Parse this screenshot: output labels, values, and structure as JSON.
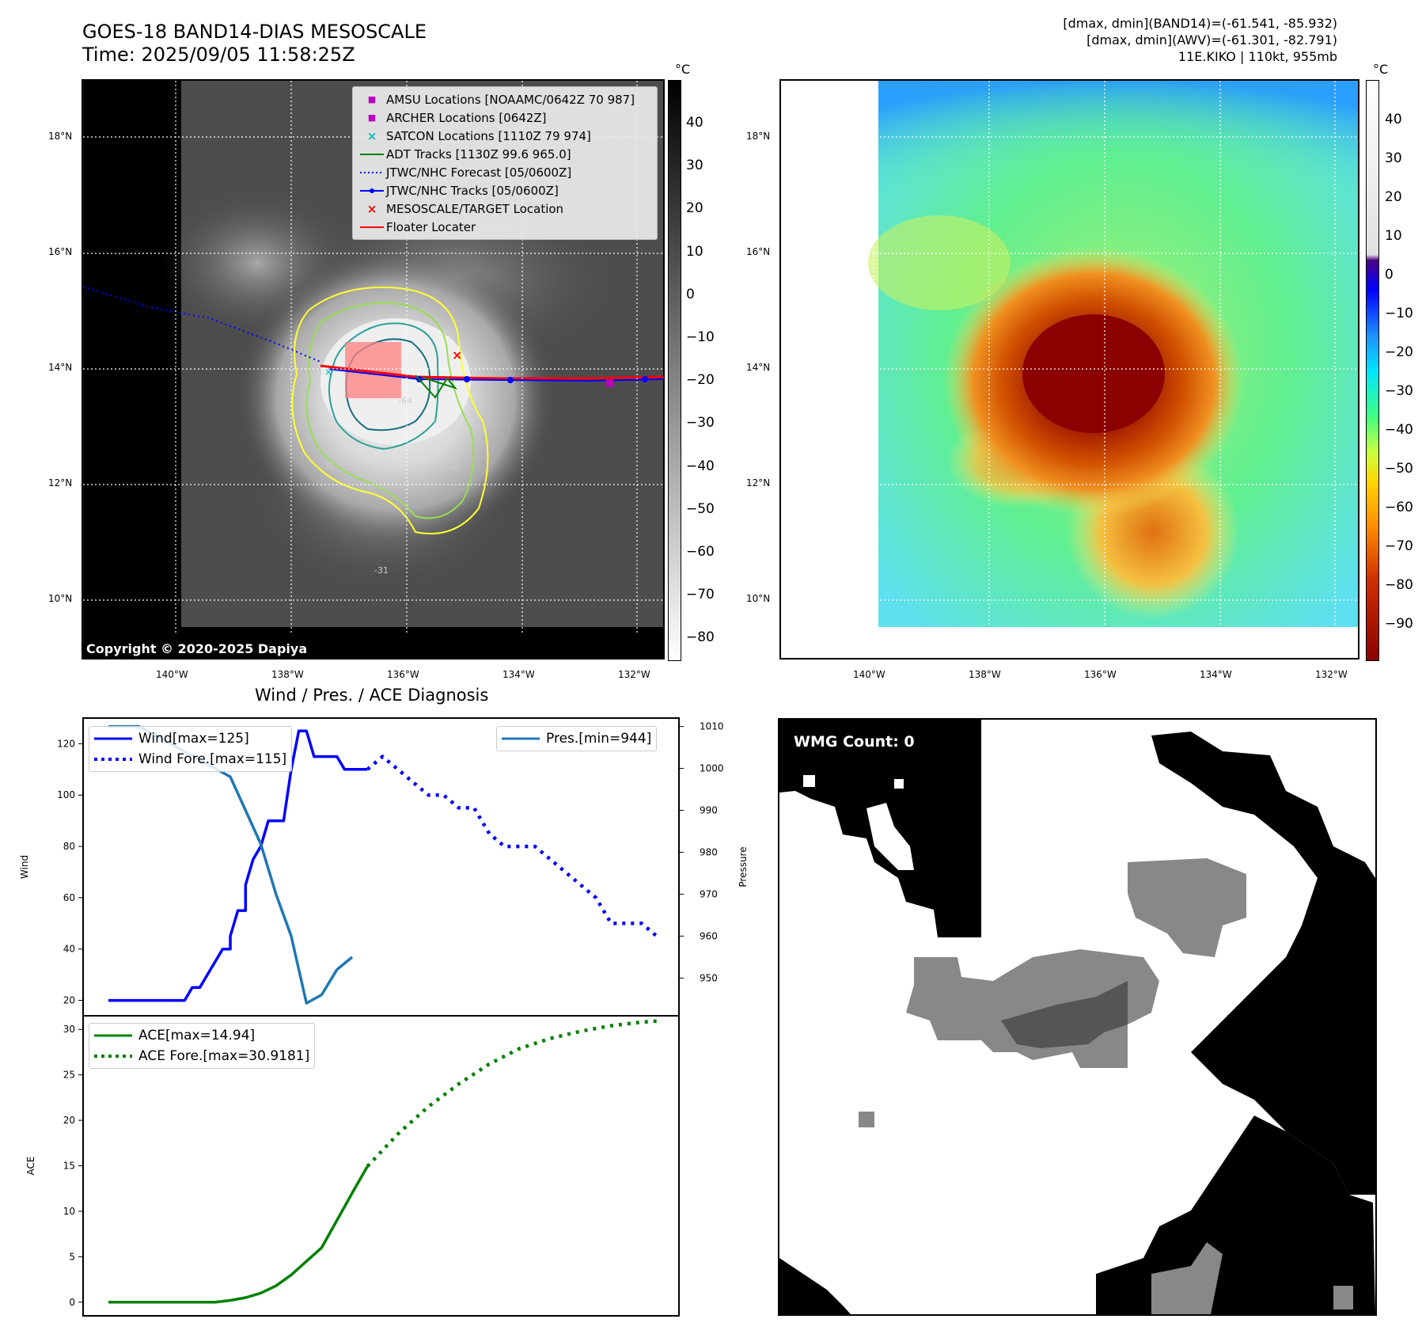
{
  "header": {
    "title_line1": "GOES-18 BAND14-DIAS MESOSCALE",
    "title_line2": "Time: 2025/09/05 11:58:25Z",
    "right_line1": "[dmax, dmin](BAND14)=(-61.541, -85.932)",
    "right_line2": "[dmax, dmin](AWV)=(-61.301, -82.791)",
    "right_line3": "11E.KIKO | 110kt, 955mb"
  },
  "ir_map": {
    "lat_labels": [
      "18°N",
      "16°N",
      "14°N",
      "12°N",
      "10°N"
    ],
    "lon_labels": [
      "140°W",
      "138°W",
      "136°W",
      "134°W",
      "132°W"
    ],
    "copyright": "Copyright © 2020-2025 Dapiya",
    "contour_labels": [
      "-54",
      "-64",
      "-54",
      "-31",
      "-31"
    ],
    "legend": [
      {
        "label": "AMSU Locations [NOAAMC/0642Z 70 987]",
        "color": "#c000c0",
        "symbol": "square-icon"
      },
      {
        "label": "ARCHER Locations [0642Z]",
        "color": "#c000c0",
        "symbol": "square-icon"
      },
      {
        "label": "SATCON Locations [1110Z 79 974]",
        "color": "#00bbbb",
        "symbol": "x-icon"
      },
      {
        "label": "ADT Tracks [1130Z 99.6 965.0]",
        "color": "#008000",
        "symbol": "line-icon"
      },
      {
        "label": "JTWC/NHC Forecast [05/0600Z]",
        "color": "#0000ff",
        "symbol": "dotted-line-icon"
      },
      {
        "label": "JTWC/NHC Tracks [05/0600Z]",
        "color": "#0000ff",
        "symbol": "line-dot-icon"
      },
      {
        "label": "MESOSCALE/TARGET Location",
        "color": "#ff0000",
        "symbol": "x-icon"
      },
      {
        "label": "Floater Locater",
        "color": "#ff0000",
        "symbol": "line-icon"
      }
    ]
  },
  "colorbar_gray": {
    "unit": "°C",
    "ticks": [
      "40",
      "30",
      "20",
      "10",
      "0",
      "−10",
      "−20",
      "−30",
      "−40",
      "−50",
      "−60",
      "−70",
      "−80"
    ]
  },
  "awv_map": {
    "lat_labels": [
      "18°N",
      "16°N",
      "14°N",
      "12°N",
      "10°N"
    ],
    "lon_labels": [
      "140°W",
      "138°W",
      "136°W",
      "134°W",
      "132°W"
    ]
  },
  "colorbar_color": {
    "unit": "°C",
    "ticks": [
      "40",
      "30",
      "20",
      "10",
      "0",
      "−10",
      "−20",
      "−30",
      "−40",
      "−50",
      "−60",
      "−70",
      "−80",
      "−90"
    ]
  },
  "wmg": {
    "label": "WMG Count: 0"
  },
  "chart_data": [
    {
      "type": "line",
      "title": "Wind / Pres. / ACE Diagnosis",
      "ylabel": "Wind",
      "y2label": "Pressure",
      "ylim": [
        14,
        130
      ],
      "y2lim": [
        941,
        1012
      ],
      "yticks": [
        "120",
        "100",
        "80",
        "60",
        "40",
        "20"
      ],
      "y2ticks": [
        "1010",
        "1000",
        "990",
        "980",
        "970",
        "960",
        "950"
      ],
      "series": [
        {
          "name": "Wind[max=125]",
          "color": "#0000ff",
          "style": "solid",
          "x": [
            0,
            2,
            4,
            6,
            8,
            10,
            10,
            11,
            12,
            12,
            13,
            14,
            14,
            15,
            16,
            16,
            17,
            18,
            18,
            19,
            20,
            21,
            22,
            23,
            24,
            24,
            25,
            26,
            27,
            28,
            29,
            30,
            31,
            32,
            32,
            33,
            34
          ],
          "values": [
            20,
            20,
            20,
            20,
            20,
            20,
            20,
            25,
            25,
            25,
            30,
            35,
            35,
            40,
            40,
            45,
            55,
            55,
            65,
            75,
            80,
            90,
            90,
            90,
            110,
            110,
            125,
            125,
            115,
            115,
            115,
            115,
            110,
            110,
            110,
            110,
            110
          ]
        },
        {
          "name": "Wind Fore.[max=115]",
          "color": "#0000ff",
          "style": "dotted",
          "x": [
            34,
            36,
            38,
            40,
            42,
            44,
            46,
            48,
            50,
            52,
            54,
            56,
            58,
            60,
            62,
            64,
            66,
            68,
            70,
            72
          ],
          "values": [
            110,
            115,
            110,
            105,
            100,
            100,
            95,
            95,
            85,
            80,
            80,
            80,
            75,
            70,
            65,
            60,
            50,
            50,
            50,
            45
          ]
        },
        {
          "name": "Pres.[min=944]",
          "color": "#1f77b4",
          "style": "solid",
          "x": [
            0,
            2,
            4,
            6,
            8,
            10,
            12,
            14,
            16,
            18,
            20,
            22,
            24,
            26,
            28,
            30,
            32
          ],
          "values": [
            1010,
            1010,
            1010,
            1008,
            1006,
            1004,
            1002,
            1000,
            998,
            990,
            982,
            970,
            960,
            944,
            946,
            952,
            955
          ]
        }
      ]
    },
    {
      "type": "line",
      "ylabel": "ACE",
      "ylim": [
        -1.5,
        31.5
      ],
      "yticks": [
        "30",
        "25",
        "20",
        "15",
        "10",
        "5",
        "0"
      ],
      "series": [
        {
          "name": "ACE[max=14.94]",
          "color": "#008000",
          "style": "solid",
          "x": [
            0,
            2,
            4,
            6,
            8,
            10,
            12,
            14,
            16,
            18,
            20,
            22,
            24,
            26,
            28,
            30,
            32,
            34
          ],
          "values": [
            0,
            0,
            0,
            0,
            0,
            0,
            0,
            0,
            0.2,
            0.5,
            1,
            1.8,
            3,
            4.5,
            6,
            9,
            12,
            14.94
          ]
        },
        {
          "name": "ACE Fore.[max=30.9181]",
          "color": "#008000",
          "style": "dotted",
          "x": [
            34,
            38,
            42,
            46,
            50,
            54,
            58,
            62,
            66,
            70,
            72
          ],
          "values": [
            14.94,
            18.5,
            21.5,
            24,
            26.2,
            27.9,
            29,
            29.8,
            30.4,
            30.8,
            30.92
          ]
        }
      ]
    }
  ]
}
